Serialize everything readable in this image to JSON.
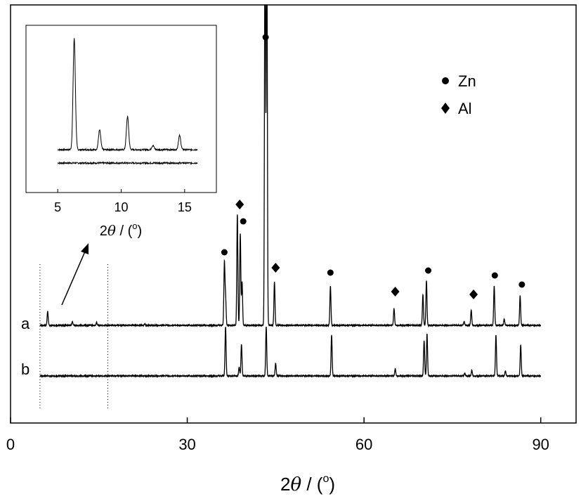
{
  "chart_data": [
    {
      "type": "line",
      "xlabel": {
        "pre": "2",
        "theta": "θ",
        "post": " / (",
        "sup": "o",
        "close": ")"
      },
      "ylabel": "",
      "xlim": [
        0,
        96
      ],
      "xticks": [
        "0",
        "30",
        "60",
        "90"
      ],
      "xtick_values": [
        0,
        30,
        60,
        90
      ],
      "grid": false,
      "legend": {
        "placement": "top-right",
        "entries": [
          {
            "marker": "circle",
            "label": "Zn"
          },
          {
            "marker": "diamond",
            "label": "Al"
          }
        ]
      },
      "dotted_range": [
        5,
        16.5
      ],
      "series": [
        {
          "name": "a",
          "x_range": [
            5,
            90
          ],
          "peaks": [
            {
              "x": 6.3,
              "h": 20
            },
            {
              "x": 10.5,
              "h": 5
            },
            {
              "x": 14.6,
              "h": 4
            },
            {
              "x": 22.8,
              "h": 2
            },
            {
              "x": 36.3,
              "h": 88
            },
            {
              "x": 36.5,
              "h": 40
            },
            {
              "x": 38.5,
              "h": 158
            },
            {
              "x": 39.0,
              "h": 130
            },
            {
              "x": 39.3,
              "h": 62
            },
            {
              "x": 43.2,
              "h": 600
            },
            {
              "x": 43.5,
              "h": 600
            },
            {
              "x": 44.8,
              "h": 62
            },
            {
              "x": 54.3,
              "h": 56
            },
            {
              "x": 65.1,
              "h": 24
            },
            {
              "x": 70.0,
              "h": 44
            },
            {
              "x": 70.6,
              "h": 64
            },
            {
              "x": 77.0,
              "h": 5
            },
            {
              "x": 78.2,
              "h": 22
            },
            {
              "x": 82.1,
              "h": 56
            },
            {
              "x": 83.8,
              "h": 9
            },
            {
              "x": 86.5,
              "h": 42
            }
          ],
          "markers": [
            {
              "x": 36.3,
              "type": "circle",
              "y": 104
            },
            {
              "x": 38.9,
              "type": "diamond",
              "y": 172
            },
            {
              "x": 39.5,
              "type": "circle",
              "y": 148
            },
            {
              "x": 43.3,
              "type": "circle",
              "y": 410
            },
            {
              "x": 45.0,
              "type": "diamond",
              "y": 82
            },
            {
              "x": 54.3,
              "type": "circle",
              "y": 75
            },
            {
              "x": 65.3,
              "type": "diamond",
              "y": 48
            },
            {
              "x": 70.9,
              "type": "circle",
              "y": 78
            },
            {
              "x": 78.6,
              "type": "diamond",
              "y": 44
            },
            {
              "x": 82.2,
              "type": "circle",
              "y": 71
            },
            {
              "x": 86.8,
              "type": "circle",
              "y": 58
            }
          ]
        },
        {
          "name": "b",
          "x_range": [
            5,
            90
          ],
          "peaks": [
            {
              "x": 36.5,
              "h": 70
            },
            {
              "x": 38.8,
              "h": 12
            },
            {
              "x": 39.2,
              "h": 45
            },
            {
              "x": 43.4,
              "h": 70
            },
            {
              "x": 45.0,
              "h": 18
            },
            {
              "x": 54.5,
              "h": 58
            },
            {
              "x": 65.3,
              "h": 10
            },
            {
              "x": 70.2,
              "h": 50
            },
            {
              "x": 70.7,
              "h": 60
            },
            {
              "x": 77.1,
              "h": 4
            },
            {
              "x": 78.3,
              "h": 8
            },
            {
              "x": 82.4,
              "h": 58
            },
            {
              "x": 84.0,
              "h": 7
            },
            {
              "x": 86.6,
              "h": 44
            }
          ]
        }
      ]
    },
    {
      "type": "line",
      "role": "inset",
      "xlabel": {
        "pre": "2",
        "theta": "θ",
        "post": " / (",
        "sup": "o",
        "close": ")"
      },
      "xlim": [
        2.5,
        17.5
      ],
      "xticks": [
        "5",
        "10",
        "15"
      ],
      "xtick_values": [
        5,
        10,
        15
      ],
      "grid": false,
      "series": [
        {
          "name": "a",
          "x_range": [
            5,
            16
          ],
          "peaks": [
            {
              "x": 6.3,
              "h": 158
            },
            {
              "x": 8.3,
              "h": 28
            },
            {
              "x": 10.5,
              "h": 47
            },
            {
              "x": 12.5,
              "h": 6
            },
            {
              "x": 14.6,
              "h": 20
            }
          ]
        },
        {
          "name": "b",
          "x_range": [
            5,
            16
          ],
          "peaks": []
        }
      ]
    }
  ],
  "series_labels": {
    "a": "a",
    "b": "b"
  }
}
